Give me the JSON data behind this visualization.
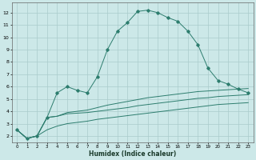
{
  "title": "",
  "xlabel": "Humidex (Indice chaleur)",
  "bg_color": "#cce8e8",
  "grid_color": "#aacccc",
  "line_color": "#2d7d6e",
  "xlim": [
    -0.5,
    23.5
  ],
  "ylim": [
    1.5,
    12.8
  ],
  "xticks": [
    0,
    1,
    2,
    3,
    4,
    5,
    6,
    7,
    8,
    9,
    10,
    11,
    12,
    13,
    14,
    15,
    16,
    17,
    18,
    19,
    20,
    21,
    22,
    23
  ],
  "yticks": [
    2,
    3,
    4,
    5,
    6,
    7,
    8,
    9,
    10,
    11,
    12
  ],
  "curve1_x": [
    0,
    1,
    2,
    3,
    4,
    5,
    6,
    7,
    8,
    9,
    10,
    11,
    12,
    13,
    14,
    15,
    16,
    17,
    18,
    19,
    20,
    21,
    22,
    23
  ],
  "curve1_y": [
    2.5,
    1.8,
    2.0,
    3.5,
    5.5,
    6.0,
    5.7,
    5.5,
    6.8,
    9.0,
    10.5,
    11.2,
    12.1,
    12.2,
    12.0,
    11.6,
    11.3,
    10.5,
    9.4,
    7.5,
    6.5,
    6.2,
    5.8,
    5.5
  ],
  "curve2_x": [
    0,
    1,
    2,
    3,
    4,
    5,
    6,
    7,
    8,
    9,
    10,
    11,
    12,
    13,
    14,
    15,
    16,
    17,
    18,
    19,
    20,
    21,
    22,
    23
  ],
  "curve2_y": [
    2.5,
    1.8,
    2.0,
    3.5,
    3.6,
    3.9,
    4.0,
    4.1,
    4.3,
    4.5,
    4.65,
    4.8,
    4.95,
    5.1,
    5.2,
    5.3,
    5.4,
    5.5,
    5.6,
    5.65,
    5.7,
    5.75,
    5.8,
    5.85
  ],
  "curve3_x": [
    0,
    1,
    2,
    3,
    4,
    5,
    6,
    7,
    8,
    9,
    10,
    11,
    12,
    13,
    14,
    15,
    16,
    17,
    18,
    19,
    20,
    21,
    22,
    23
  ],
  "curve3_y": [
    2.5,
    1.8,
    2.0,
    3.5,
    3.6,
    3.8,
    3.85,
    3.9,
    4.0,
    4.1,
    4.2,
    4.3,
    4.45,
    4.55,
    4.65,
    4.75,
    4.85,
    4.95,
    5.05,
    5.1,
    5.2,
    5.25,
    5.3,
    5.35
  ],
  "curve4_x": [
    0,
    1,
    2,
    3,
    4,
    5,
    6,
    7,
    8,
    9,
    10,
    11,
    12,
    13,
    14,
    15,
    16,
    17,
    18,
    19,
    20,
    21,
    22,
    23
  ],
  "curve4_y": [
    2.5,
    1.8,
    2.0,
    2.5,
    2.8,
    3.0,
    3.1,
    3.2,
    3.35,
    3.45,
    3.55,
    3.65,
    3.75,
    3.85,
    3.95,
    4.05,
    4.15,
    4.25,
    4.35,
    4.45,
    4.55,
    4.6,
    4.65,
    4.7
  ]
}
